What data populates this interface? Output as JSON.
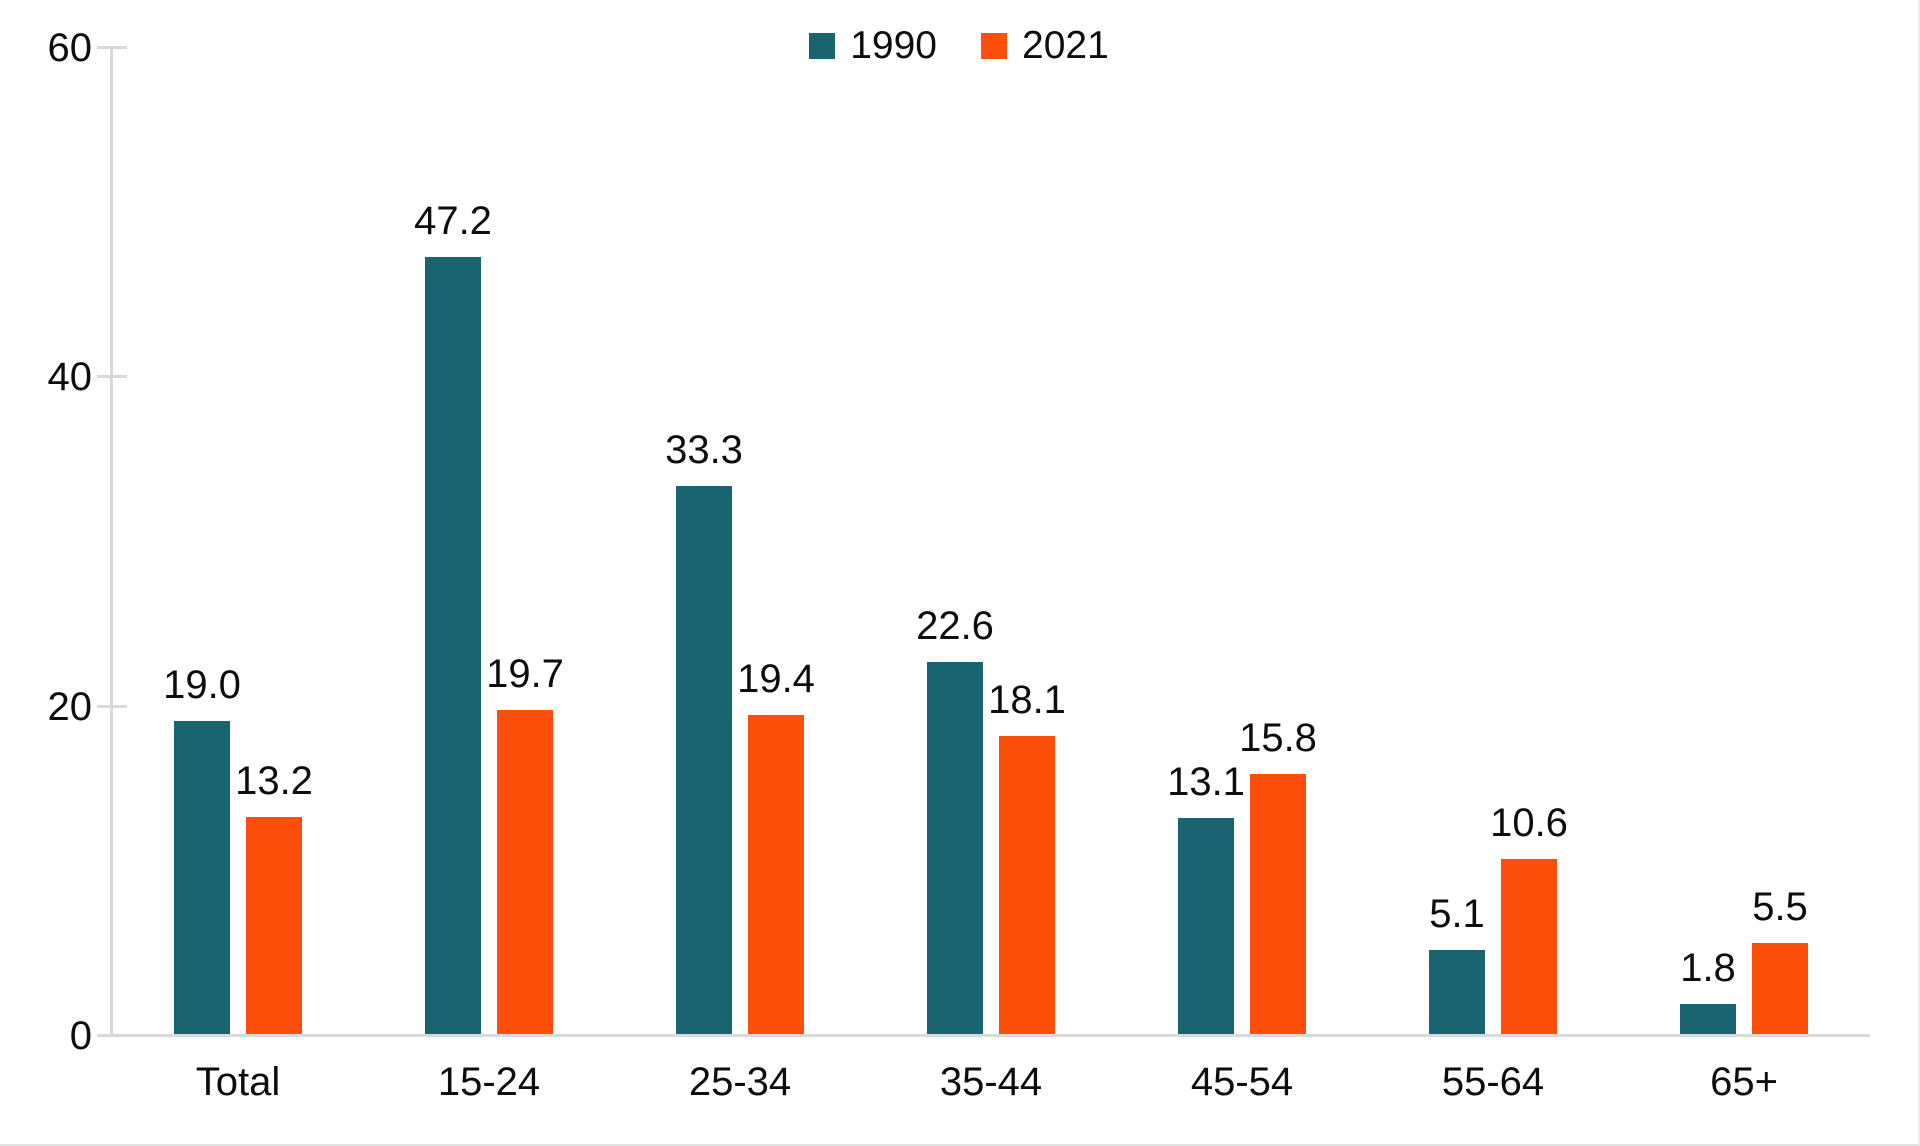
{
  "chart_data": {
    "type": "bar",
    "categories": [
      "Total",
      "15-24",
      "25-34",
      "35-44",
      "45-54",
      "55-64",
      "65+"
    ],
    "series": [
      {
        "name": "1990",
        "color": "#1a6370",
        "values": [
          19.0,
          47.2,
          33.3,
          22.6,
          13.1,
          5.1,
          1.8
        ]
      },
      {
        "name": "2021",
        "color": "#fc4f0c",
        "values": [
          13.2,
          19.7,
          19.4,
          18.1,
          15.8,
          10.6,
          5.5
        ]
      }
    ],
    "data_label_format": "one-decimal",
    "title": "",
    "xlabel": "",
    "ylabel": "",
    "ylim": [
      0,
      60
    ],
    "yticks": [
      0,
      20,
      40,
      60
    ],
    "grid": false,
    "legend_position": "top-center",
    "legend": [
      {
        "label": "1990",
        "color": "#1a6370"
      },
      {
        "label": "2021",
        "color": "#fc4f0c"
      }
    ],
    "axis_color": "#d9d9d9",
    "text_color": "#0d0d0d"
  }
}
